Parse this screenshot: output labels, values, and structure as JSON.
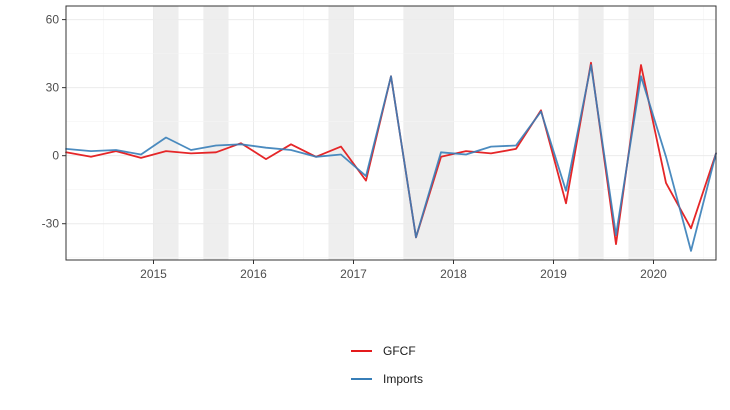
{
  "chart_data": {
    "type": "line",
    "title": "",
    "xlabel": "",
    "ylabel": "",
    "xlim": [
      2014.125,
      2020.625
    ],
    "ylim": [
      -46,
      66
    ],
    "x_ticks": [
      2015,
      2016,
      2017,
      2018,
      2019,
      2020
    ],
    "x_tick_labels": [
      "2015",
      "2016",
      "2017",
      "2018",
      "2019",
      "2020"
    ],
    "y_ticks": [
      -30,
      0,
      30,
      60
    ],
    "y_tick_labels": [
      "-30",
      "0",
      "30",
      "60"
    ],
    "grid": true,
    "legend_position": "bottom",
    "shaded_periods": [
      [
        2015.0,
        2015.25
      ],
      [
        2015.5,
        2015.75
      ],
      [
        2016.75,
        2017.0
      ],
      [
        2017.5,
        2018.0
      ],
      [
        2019.25,
        2019.5
      ],
      [
        2019.75,
        2020.0
      ]
    ],
    "x": [
      2014.125,
      2014.375,
      2014.625,
      2014.875,
      2015.125,
      2015.375,
      2015.625,
      2015.875,
      2016.125,
      2016.375,
      2016.625,
      2016.875,
      2017.125,
      2017.375,
      2017.625,
      2017.875,
      2018.125,
      2018.375,
      2018.625,
      2018.875,
      2019.125,
      2019.375,
      2019.625,
      2019.875,
      2020.125,
      2020.375,
      2020.625
    ],
    "series": [
      {
        "name": "GFCF",
        "color": "#e41a1c",
        "values": [
          1.5,
          -0.5,
          2,
          -1,
          2,
          1,
          1.5,
          5.5,
          -1.5,
          5,
          -0.5,
          4,
          -11,
          35,
          -36,
          -0.5,
          2,
          1,
          3,
          20,
          -21,
          41,
          -39,
          40,
          -12,
          -32,
          1
        ]
      },
      {
        "name": "Imports",
        "color": "#377eb8",
        "values": [
          3,
          2,
          2.5,
          0.5,
          8,
          2.5,
          4.5,
          5,
          3.5,
          2.5,
          -0.5,
          0.5,
          -9,
          35,
          -36,
          1.5,
          0.5,
          4,
          4.5,
          19.5,
          -15.5,
          40,
          -35,
          35,
          -0.5,
          -42,
          1
        ]
      }
    ]
  }
}
